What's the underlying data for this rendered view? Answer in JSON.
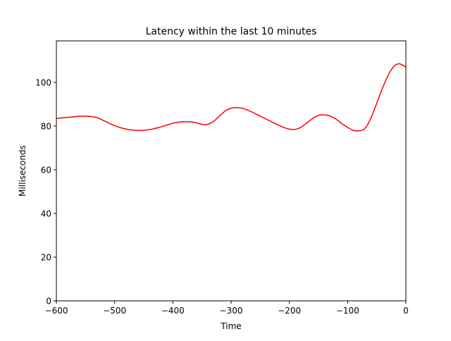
{
  "chart_data": {
    "type": "line",
    "title": "Latency within the last 10 minutes",
    "xlabel": "Time",
    "ylabel": "Milliseconds",
    "xlim": [
      -600,
      0
    ],
    "ylim": [
      0,
      119
    ],
    "x_ticks": [
      -600,
      -500,
      -400,
      -300,
      -200,
      -100,
      0
    ],
    "x_tick_labels": [
      "−600",
      "−500",
      "−400",
      "−300",
      "−200",
      "−100",
      "0"
    ],
    "y_ticks": [
      0,
      20,
      40,
      60,
      80,
      100
    ],
    "y_tick_labels": [
      "0",
      "20",
      "40",
      "60",
      "80",
      "100"
    ],
    "grid": false,
    "legend": "none",
    "series": [
      {
        "color": "#ff0000",
        "x": [
          -600,
          -580,
          -560,
          -545,
          -530,
          -515,
          -500,
          -485,
          -470,
          -455,
          -440,
          -425,
          -410,
          -395,
          -380,
          -365,
          -350,
          -340,
          -330,
          -320,
          -310,
          -300,
          -290,
          -280,
          -270,
          -260,
          -250,
          -240,
          -230,
          -220,
          -210,
          -200,
          -190,
          -180,
          -170,
          -160,
          -150,
          -140,
          -130,
          -120,
          -110,
          -100,
          -90,
          -80,
          -72,
          -65,
          -58,
          -50,
          -40,
          -30,
          -20,
          -12,
          -5,
          0
        ],
        "y": [
          83.5,
          84.0,
          84.5,
          84.5,
          83.8,
          82.0,
          80.2,
          78.9,
          78.2,
          78.0,
          78.4,
          79.3,
          80.5,
          81.6,
          82.0,
          81.8,
          80.8,
          80.8,
          82.2,
          84.6,
          86.9,
          88.2,
          88.5,
          88.1,
          87.1,
          85.9,
          84.5,
          83.2,
          81.9,
          80.6,
          79.4,
          78.6,
          78.5,
          79.5,
          81.4,
          83.5,
          84.9,
          85.1,
          84.6,
          83.2,
          81.1,
          79.4,
          78.0,
          77.8,
          78.5,
          81.0,
          85.0,
          90.5,
          97.5,
          103.5,
          107.5,
          108.5,
          107.8,
          107.0
        ]
      }
    ]
  }
}
